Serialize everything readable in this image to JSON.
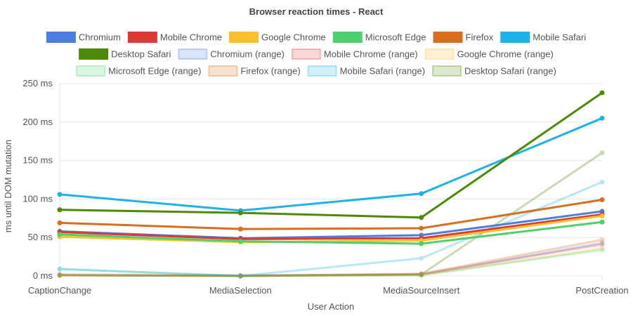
{
  "chart_data": {
    "type": "line",
    "title": "Browser reaction times - React",
    "xlabel": "User Action",
    "ylabel": "ms until DOM mutation",
    "categories": [
      "CaptionChange",
      "MediaSelection",
      "MediaSourceInsert",
      "PostCreation"
    ],
    "ylim": [
      0,
      250
    ],
    "yticks": [
      0,
      50,
      100,
      150,
      200,
      250
    ],
    "ytick_suffix": " ms",
    "grid": true,
    "legend_placement": "top",
    "series": [
      {
        "name": "Chromium",
        "color": "#4a7fe0",
        "values": [
          58,
          49,
          53,
          84
        ]
      },
      {
        "name": "Mobile Chrome",
        "color": "#dc3a33",
        "values": [
          57,
          48,
          49,
          80
        ]
      },
      {
        "name": "Google Chrome",
        "color": "#fbc02d",
        "values": [
          51,
          44,
          46,
          78
        ]
      },
      {
        "name": "Microsoft Edge",
        "color": "#4dd06d",
        "values": [
          54,
          45,
          42,
          70
        ]
      },
      {
        "name": "Firefox",
        "color": "#d86f1f",
        "values": [
          69,
          61,
          62,
          99
        ]
      },
      {
        "name": "Mobile Safari",
        "color": "#1fb2e8",
        "values": [
          106,
          85,
          107,
          205
        ]
      },
      {
        "name": "Desktop Safari",
        "color": "#4d8a06",
        "values": [
          86,
          82,
          76,
          238
        ]
      },
      {
        "name": "Chromium (range)",
        "color": "#4a7fe0",
        "values": [
          2,
          1,
          2,
          43
        ]
      },
      {
        "name": "Mobile Chrome (range)",
        "color": "#dc3a33",
        "values": [
          1,
          0,
          2,
          41
        ]
      },
      {
        "name": "Google Chrome (range)",
        "color": "#fbc02d",
        "values": [
          1,
          0,
          1,
          36
        ]
      },
      {
        "name": "Microsoft Edge (range)",
        "color": "#4dd06d",
        "values": [
          9,
          0,
          1,
          34
        ]
      },
      {
        "name": "Firefox (range)",
        "color": "#d86f1f",
        "values": [
          1,
          0,
          3,
          47
        ]
      },
      {
        "name": "Mobile Safari (range)",
        "color": "#1fb2e8",
        "values": [
          9,
          0,
          23,
          122
        ]
      },
      {
        "name": "Desktop Safari (range)",
        "color": "#4d8a06",
        "values": [
          1,
          0,
          2,
          160
        ]
      }
    ]
  }
}
